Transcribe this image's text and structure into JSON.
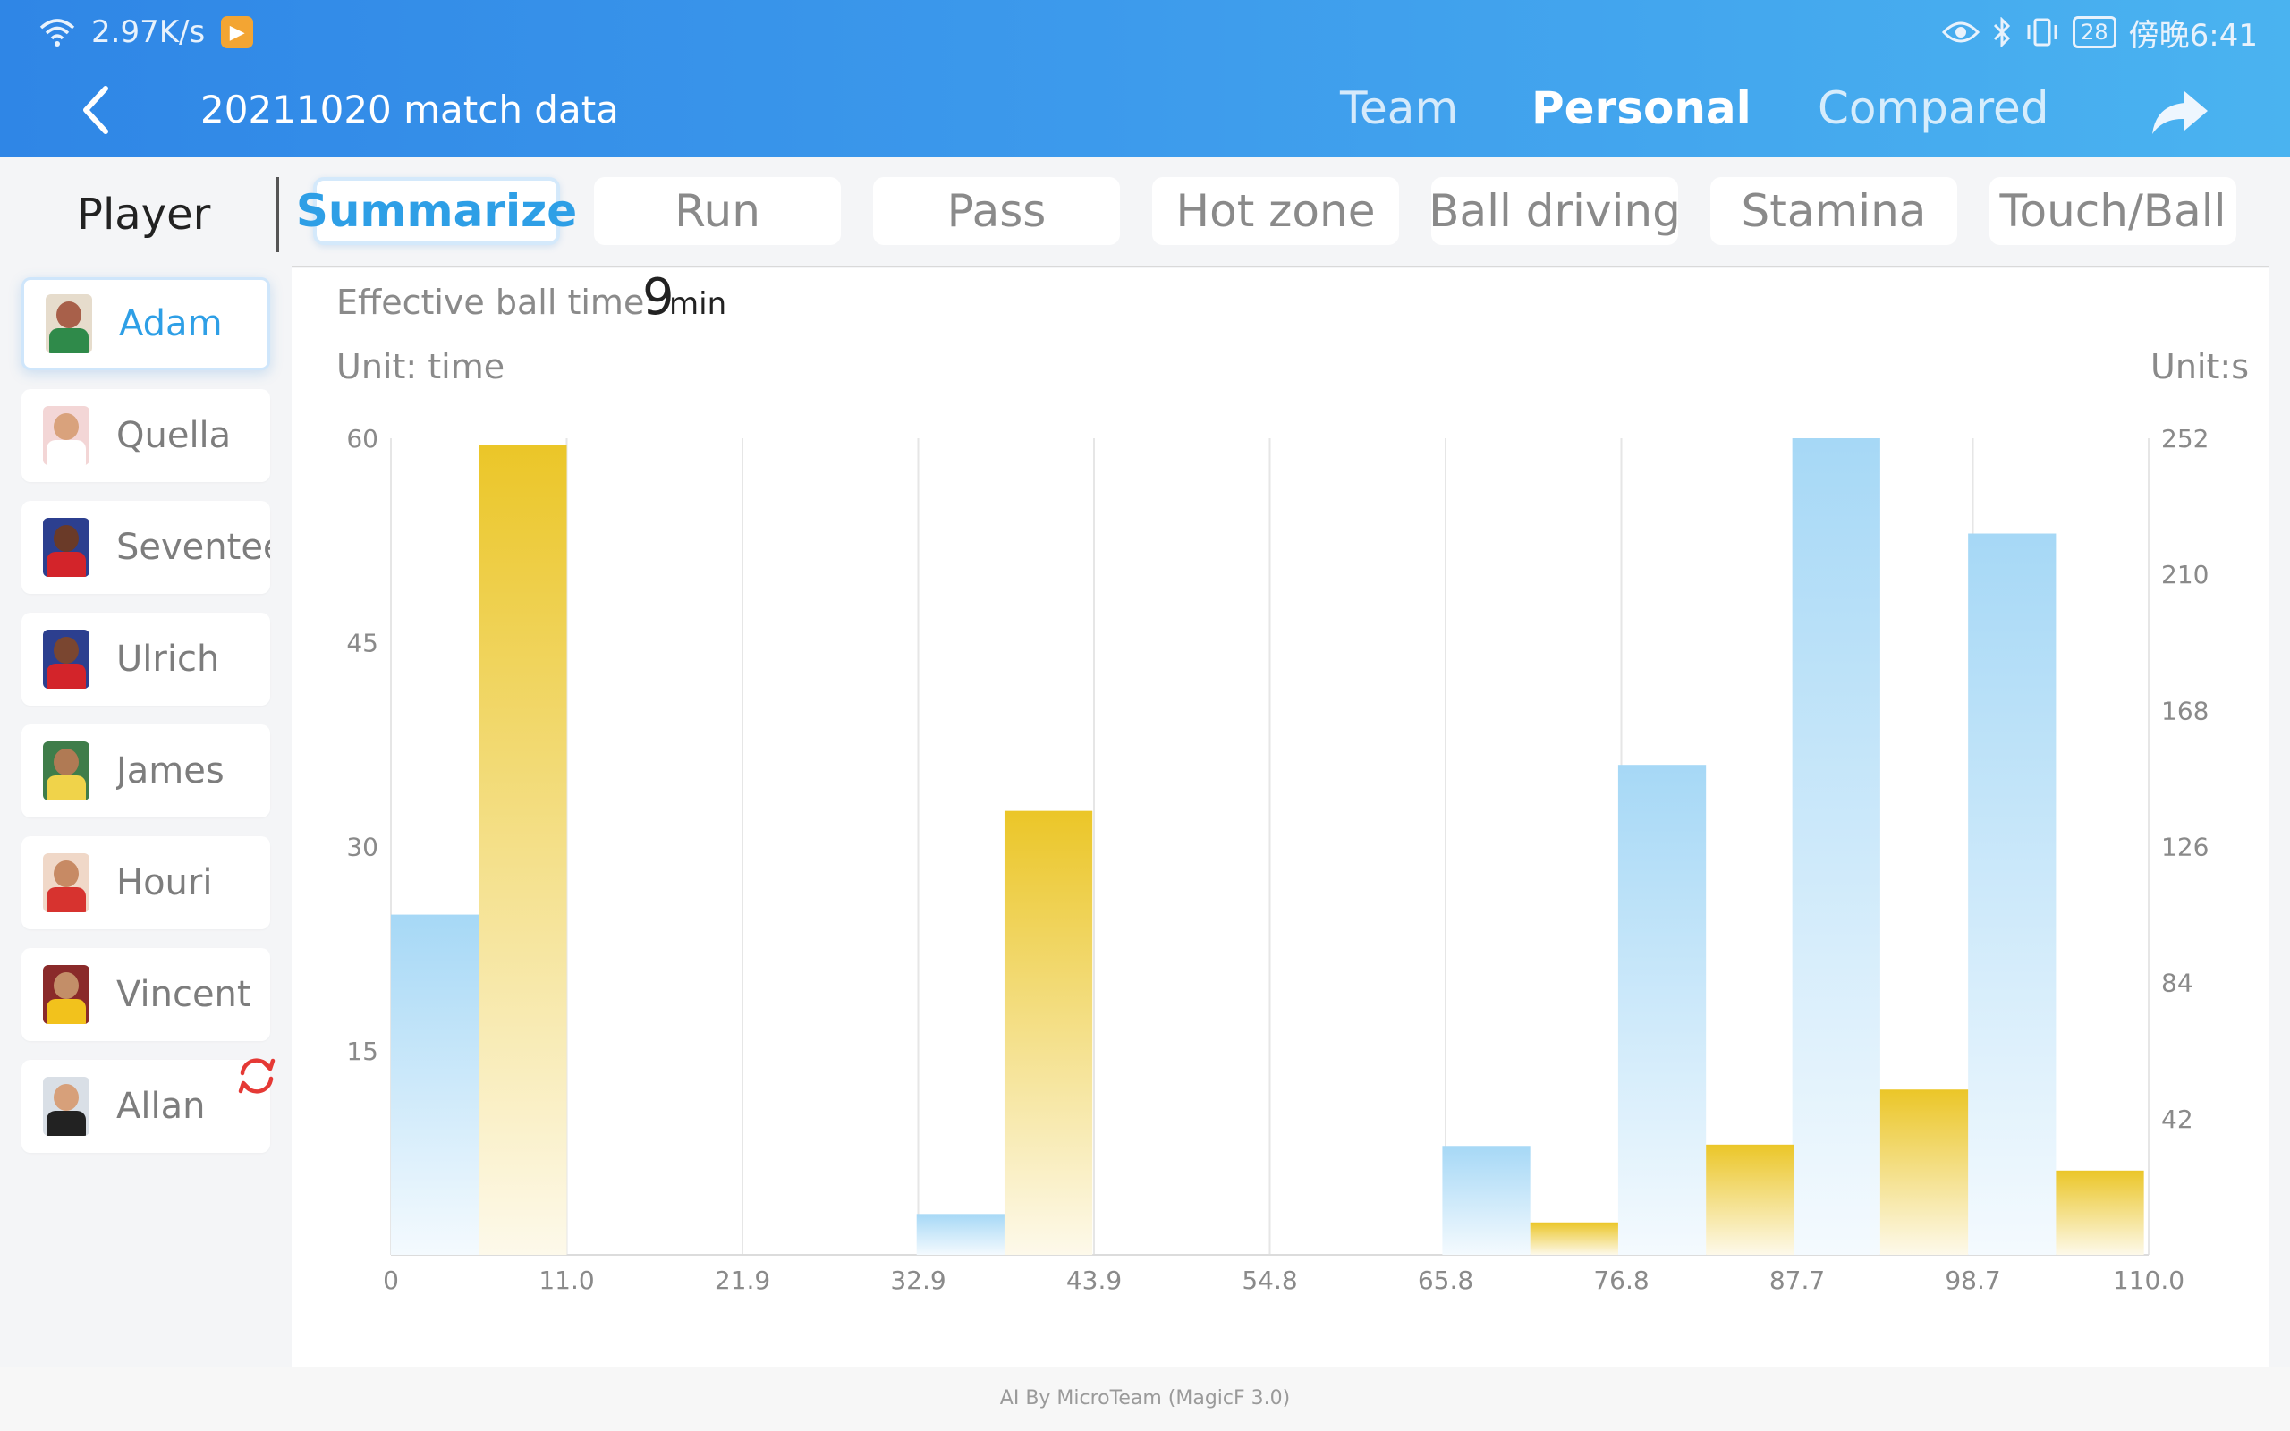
{
  "status_bar": {
    "network_speed": "2.97K/s",
    "battery": "28",
    "time": "傍晚6:41"
  },
  "header": {
    "title": "20211020 match data",
    "tabs": [
      {
        "label": "Team",
        "active": false
      },
      {
        "label": "Personal",
        "active": true
      },
      {
        "label": "Compared",
        "active": false
      }
    ]
  },
  "sidebar": {
    "title": "Player",
    "players": [
      {
        "name": "Adam",
        "active": true,
        "skin": "#a8604a",
        "shirt": "#2f8a4a"
      },
      {
        "name": "Quella",
        "active": false,
        "skin": "#d9a27c",
        "shirt": "#ffffff"
      },
      {
        "name": "Seventee",
        "active": false,
        "skin": "#6a3a28",
        "shirt": "#d3242a"
      },
      {
        "name": "Ulrich",
        "active": false,
        "skin": "#7a4630",
        "shirt": "#d3242a"
      },
      {
        "name": "James",
        "active": false,
        "skin": "#b07a54",
        "shirt": "#f0d34a"
      },
      {
        "name": "Houri",
        "active": false,
        "skin": "#c78a64",
        "shirt": "#d7332f"
      },
      {
        "name": "Vincent",
        "active": false,
        "skin": "#c38e68",
        "shirt": "#f2c21c"
      },
      {
        "name": "Allan",
        "active": false,
        "skin": "#d7a07a",
        "shirt": "#222222"
      }
    ]
  },
  "subtabs": [
    {
      "label": "Summarize",
      "active": true
    },
    {
      "label": "Run",
      "active": false
    },
    {
      "label": "Pass",
      "active": false
    },
    {
      "label": "Hot zone",
      "active": false
    },
    {
      "label": "Ball driving",
      "active": false
    },
    {
      "label": "Stamina",
      "active": false
    },
    {
      "label": "Touch/Ball",
      "active": false
    }
  ],
  "summary": {
    "effective_ball_time_label": "Effective ball time:",
    "effective_ball_time_value": "9",
    "effective_ball_time_unit": "min",
    "unit_left": "Unit: time",
    "unit_right": "Unit:s"
  },
  "chart_data": {
    "type": "bar",
    "x_ticks": [
      "0",
      "11.0",
      "21.9",
      "32.9",
      "43.9",
      "54.8",
      "65.8",
      "76.8",
      "87.7",
      "98.7",
      "110.0"
    ],
    "xlim": [
      0,
      110
    ],
    "left_axis": {
      "ticks": [
        "15",
        "30",
        "45",
        "60"
      ],
      "ylim": [
        0,
        60
      ]
    },
    "right_axis": {
      "ticks": [
        "42",
        "84",
        "126",
        "168",
        "210",
        "252"
      ],
      "ylim": [
        0,
        252
      ]
    },
    "bar_width": 5.5,
    "series": [
      {
        "axis": "left",
        "color_top": "#a6d8f6",
        "color_bottom": "#f4fafe",
        "x": [
          0,
          32.9,
          65.8,
          76.8,
          87.7,
          98.7
        ],
        "values": [
          25,
          3,
          8,
          36,
          60,
          53
        ]
      },
      {
        "axis": "right",
        "color_top": "#ebc628",
        "color_bottom": "#fdf9ea",
        "x": [
          5.5,
          38.4,
          71.3,
          82.3,
          93.2,
          104.2
        ],
        "values": [
          250,
          137,
          10,
          34,
          51,
          26
        ]
      }
    ]
  },
  "footer": {
    "credit": "AI By MicroTeam (MagicF 3.0)"
  }
}
